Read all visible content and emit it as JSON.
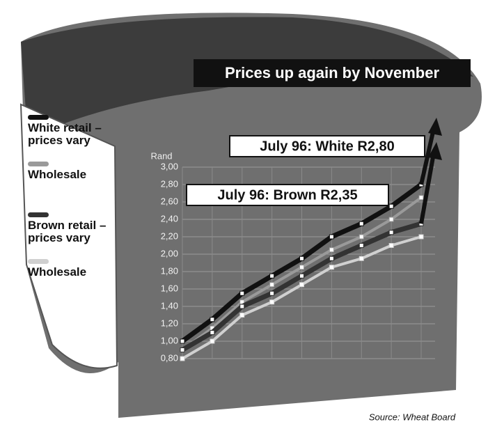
{
  "chart_data": {
    "type": "line",
    "title": "Prices up again by November",
    "y_label": "Rand",
    "source": "Source: Wheat Board",
    "categories": [
      null,
      null,
      null,
      null,
      null,
      null,
      null,
      null,
      null
    ],
    "series": [
      {
        "name": "White retail – prices vary",
        "color": "#111111",
        "values": [
          1.0,
          1.25,
          1.55,
          1.75,
          1.95,
          2.2,
          2.35,
          2.55,
          2.8
        ]
      },
      {
        "name": "Wholesale",
        "color": "#9a9a9a",
        "values": [
          0.9,
          1.15,
          1.45,
          1.65,
          1.85,
          2.05,
          2.2,
          2.4,
          2.65
        ]
      },
      {
        "name": "Brown retail – prices vary",
        "color": "#333333",
        "values": [
          0.9,
          1.1,
          1.4,
          1.55,
          1.75,
          1.95,
          2.1,
          2.25,
          2.35
        ]
      },
      {
        "name": "Wholesale",
        "color": "#d0d0d0",
        "values": [
          0.8,
          1.0,
          1.3,
          1.45,
          1.65,
          1.85,
          1.95,
          2.1,
          2.2
        ]
      }
    ],
    "ylim": [
      0.8,
      3.0
    ],
    "yticks": [
      {
        "value": 0.8,
        "label": "0,80"
      },
      {
        "value": 1.0,
        "label": "1,00"
      },
      {
        "value": 1.2,
        "label": "1,20"
      },
      {
        "value": 1.4,
        "label": "1,40"
      },
      {
        "value": 1.6,
        "label": "1,60"
      },
      {
        "value": 1.8,
        "label": "1,80"
      },
      {
        "value": 2.0,
        "label": "2,00"
      },
      {
        "value": 2.2,
        "label": "2,20"
      },
      {
        "value": 2.4,
        "label": "2,40"
      },
      {
        "value": 2.6,
        "label": "2,60"
      },
      {
        "value": 2.8,
        "label": "2,80"
      },
      {
        "value": 3.0,
        "label": "3,00"
      }
    ],
    "grid": true,
    "annotations": [
      "July 96: White R2,80",
      "July 96: Brown R2,35"
    ]
  }
}
